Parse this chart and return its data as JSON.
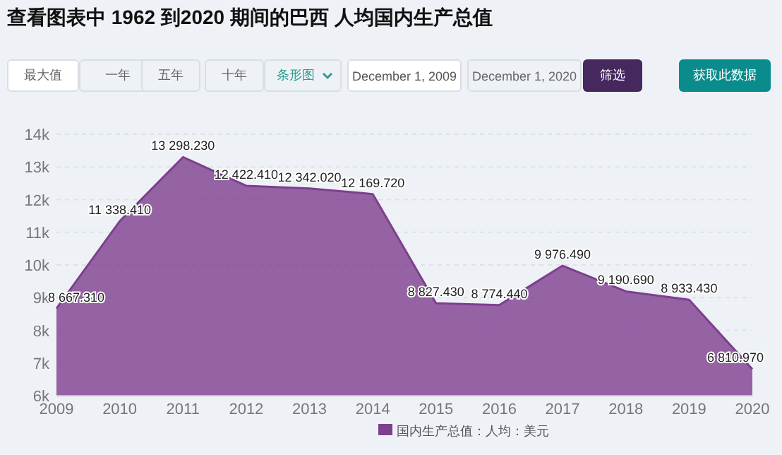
{
  "chart_data": {
    "type": "area",
    "title": "查看图表中 1962 到2020 期间的巴西 人均国内生产总值",
    "annotations": [
      "最大值",
      "一年",
      "五年",
      "十年",
      "条形图",
      "December 1, 2009",
      "December 1, 2020",
      "筛选",
      "获取此数据"
    ],
    "categories": [
      "2009",
      "2010",
      "2011",
      "2012",
      "2013",
      "2014",
      "2015",
      "2016",
      "2017",
      "2018",
      "2019",
      "2020"
    ],
    "series": [
      {
        "name": "国内生产总值：人均：美元",
        "color": "#7e3f8f",
        "values": [
          8667.31,
          11338.41,
          13298.23,
          12422.41,
          12342.02,
          12169.72,
          8827.43,
          8774.44,
          9976.49,
          9190.69,
          8933.43,
          6810.97
        ],
        "value_labels": [
          "8 667.310",
          "11 338.410",
          "13 298.230",
          "12 422.410",
          "12 342.020",
          "12 169.720",
          "8 827.430",
          "8 774.440",
          "9 976.490",
          "9 190.690",
          "8 933.430",
          "6 810.970"
        ]
      }
    ],
    "ylim": [
      6000,
      14000
    ],
    "yticks": [
      {
        "value": 6000,
        "label": "6k"
      },
      {
        "value": 7000,
        "label": "7k"
      },
      {
        "value": 8000,
        "label": "8k"
      },
      {
        "value": 9000,
        "label": "9k"
      },
      {
        "value": 10000,
        "label": "10k"
      },
      {
        "value": 11000,
        "label": "11k"
      },
      {
        "value": 12000,
        "label": "12k"
      },
      {
        "value": 13000,
        "label": "13k"
      },
      {
        "value": 14000,
        "label": "14k"
      }
    ],
    "grid": "y",
    "legend": "bottom"
  }
}
